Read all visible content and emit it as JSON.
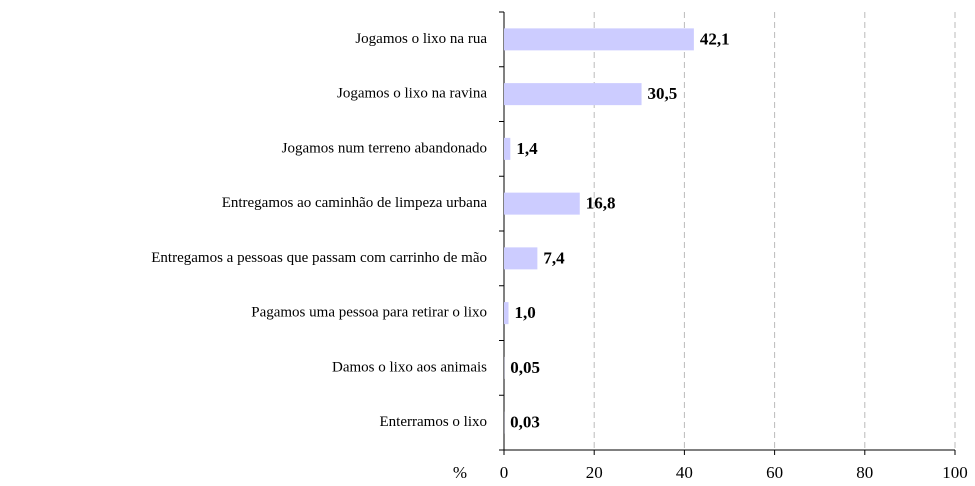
{
  "chart_data": {
    "type": "bar",
    "orientation": "horizontal",
    "xlabel": "%",
    "categories": [
      "Jogamos o lixo na rua",
      "Jogamos o lixo na ravina",
      "Jogamos num terreno abandonado",
      "Entregamos ao caminhão de limpeza urbana",
      "Entregamos a pessoas que passam com carrinho de mão",
      "Pagamos uma pessoa para retirar o lixo",
      "Damos o lixo aos animais",
      "Enterramos o lixo"
    ],
    "values": [
      42.1,
      30.5,
      1.4,
      16.8,
      7.4,
      1.0,
      0.05,
      0.03
    ],
    "value_labels": [
      "42,1",
      "30,5",
      "1,4",
      "16,8",
      "7,4",
      "1,0",
      "0,05",
      "0,03"
    ],
    "color": "#ccccff",
    "xlim": [
      0,
      100
    ],
    "xticks": [
      0,
      20,
      40,
      60,
      80,
      100
    ],
    "grid": true
  }
}
